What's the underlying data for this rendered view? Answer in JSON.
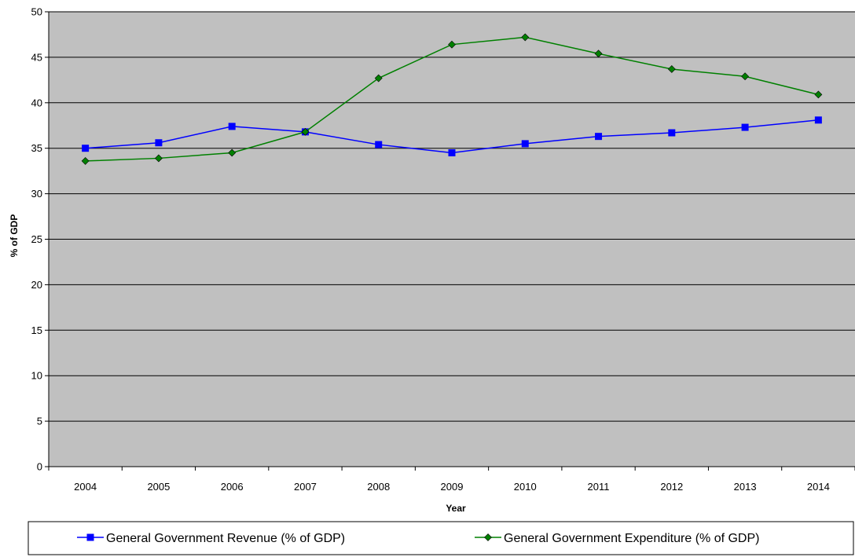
{
  "chart_data": {
    "type": "line",
    "title": "",
    "xlabel": "Year",
    "ylabel": "% of GDP",
    "categories": [
      "2004",
      "2005",
      "2006",
      "2007",
      "2008",
      "2009",
      "2010",
      "2011",
      "2012",
      "2013",
      "2014"
    ],
    "ylim": [
      0,
      50
    ],
    "yticks": [
      0,
      5,
      10,
      15,
      20,
      25,
      30,
      35,
      40,
      45,
      50
    ],
    "grid": "horizontal",
    "legend_position": "bottom",
    "plot_background": "#c0c0c0",
    "series": [
      {
        "name": "General Government Revenue (% of GDP)",
        "color": "#0000ff",
        "marker": "square",
        "values": [
          35.0,
          35.6,
          37.4,
          36.8,
          35.4,
          34.5,
          35.5,
          36.3,
          36.7,
          37.3,
          38.1
        ]
      },
      {
        "name": "General Government Expenditure (% of GDP)",
        "color": "#008000",
        "marker": "diamond",
        "values": [
          33.6,
          33.9,
          34.5,
          36.8,
          42.7,
          46.4,
          47.2,
          45.4,
          43.7,
          42.9,
          40.9
        ]
      }
    ]
  }
}
